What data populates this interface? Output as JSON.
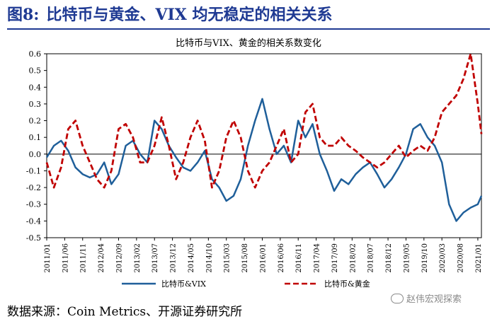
{
  "figure": {
    "label": "图8:",
    "title": "比特币与黄金、VIX 均无稳定的相关关系"
  },
  "source_note": "数据来源：Coin Metrics、开源证券研究所",
  "watermark": "赵伟宏观探索",
  "colors": {
    "btc_vix": "#1f5f9a",
    "btc_gold": "#c00000"
  },
  "chart_data": {
    "type": "line",
    "title": "比特币与VIX、黄金的相关系数变化",
    "x_ticks": [
      "2011/01",
      "2011/06",
      "2011/11",
      "2012/04",
      "2012/09",
      "2013/02",
      "2013/07",
      "2013/12",
      "2014/05",
      "2014/10",
      "2015/03",
      "2015/08",
      "2016/01",
      "2016/06",
      "2016/11",
      "2017/04",
      "2017/09",
      "2018/02",
      "2018/07",
      "2018/12",
      "2019/05",
      "2019/10",
      "2020/03",
      "2020/08",
      "2021/01"
    ],
    "ylim": [
      -0.5,
      0.6
    ],
    "y_ticks": [
      -0.5,
      -0.4,
      -0.3,
      -0.2,
      -0.1,
      0.0,
      0.1,
      0.2,
      0.3,
      0.4,
      0.5,
      0.6
    ],
    "legend_position": "bottom",
    "series": [
      {
        "name": "比特币&VIX",
        "style": "solid",
        "x": [
          "2011/01",
          "2011/03",
          "2011/05",
          "2011/07",
          "2011/09",
          "2011/11",
          "2012/01",
          "2012/03",
          "2012/05",
          "2012/07",
          "2012/09",
          "2012/11",
          "2013/01",
          "2013/03",
          "2013/05",
          "2013/07",
          "2013/09",
          "2013/11",
          "2014/01",
          "2014/03",
          "2014/05",
          "2014/07",
          "2014/09",
          "2014/11",
          "2015/01",
          "2015/03",
          "2015/05",
          "2015/07",
          "2015/09",
          "2015/11",
          "2016/01",
          "2016/03",
          "2016/05",
          "2016/07",
          "2016/09",
          "2016/11",
          "2017/01",
          "2017/03",
          "2017/05",
          "2017/07",
          "2017/09",
          "2017/11",
          "2018/01",
          "2018/03",
          "2018/05",
          "2018/07",
          "2018/09",
          "2018/11",
          "2019/01",
          "2019/03",
          "2019/05",
          "2019/07",
          "2019/09",
          "2019/11",
          "2020/01",
          "2020/03",
          "2020/05",
          "2020/07",
          "2020/09",
          "2020/11",
          "2021/01",
          "2021/02"
        ],
        "values": [
          -0.02,
          0.05,
          0.08,
          0.02,
          -0.08,
          -0.12,
          -0.14,
          -0.12,
          -0.05,
          -0.18,
          -0.12,
          0.05,
          0.08,
          0.0,
          -0.05,
          0.2,
          0.15,
          0.05,
          -0.02,
          -0.08,
          -0.1,
          -0.05,
          0.02,
          -0.15,
          -0.2,
          -0.28,
          -0.25,
          -0.15,
          0.05,
          0.2,
          0.33,
          0.15,
          0.0,
          0.05,
          -0.05,
          0.2,
          0.1,
          0.18,
          0.0,
          -0.1,
          -0.22,
          -0.15,
          -0.18,
          -0.12,
          -0.08,
          -0.05,
          -0.12,
          -0.2,
          -0.15,
          -0.08,
          0.0,
          0.15,
          0.18,
          0.1,
          0.05,
          -0.05,
          -0.3,
          -0.4,
          -0.35,
          -0.32,
          -0.3,
          -0.25
        ]
      },
      {
        "name": "比特币&黄金",
        "style": "dashed",
        "x": [
          "2011/01",
          "2011/03",
          "2011/05",
          "2011/07",
          "2011/09",
          "2011/11",
          "2012/01",
          "2012/03",
          "2012/05",
          "2012/07",
          "2012/09",
          "2012/11",
          "2013/01",
          "2013/03",
          "2013/05",
          "2013/07",
          "2013/09",
          "2013/11",
          "2014/01",
          "2014/03",
          "2014/05",
          "2014/07",
          "2014/09",
          "2014/11",
          "2015/01",
          "2015/03",
          "2015/05",
          "2015/07",
          "2015/09",
          "2015/11",
          "2016/01",
          "2016/03",
          "2016/05",
          "2016/07",
          "2016/09",
          "2016/11",
          "2017/01",
          "2017/03",
          "2017/05",
          "2017/07",
          "2017/09",
          "2017/11",
          "2018/01",
          "2018/03",
          "2018/05",
          "2018/07",
          "2018/09",
          "2018/11",
          "2019/01",
          "2019/03",
          "2019/05",
          "2019/07",
          "2019/09",
          "2019/11",
          "2020/01",
          "2020/03",
          "2020/05",
          "2020/07",
          "2020/09",
          "2020/11",
          "2021/01",
          "2021/02"
        ],
        "values": [
          -0.05,
          -0.2,
          -0.08,
          0.15,
          0.2,
          0.05,
          -0.05,
          -0.15,
          -0.2,
          -0.1,
          0.15,
          0.18,
          0.1,
          -0.05,
          -0.05,
          0.05,
          0.22,
          0.05,
          -0.15,
          -0.05,
          0.1,
          0.2,
          0.08,
          -0.2,
          -0.1,
          0.1,
          0.2,
          0.1,
          -0.1,
          -0.2,
          -0.1,
          -0.05,
          0.05,
          0.15,
          -0.05,
          0.0,
          0.25,
          0.3,
          0.1,
          0.05,
          0.05,
          0.1,
          0.05,
          0.02,
          -0.02,
          -0.05,
          -0.08,
          -0.05,
          0.0,
          0.05,
          -0.02,
          0.02,
          0.05,
          0.02,
          0.1,
          0.25,
          0.3,
          0.35,
          0.45,
          0.6,
          0.3,
          0.12
        ]
      }
    ]
  }
}
